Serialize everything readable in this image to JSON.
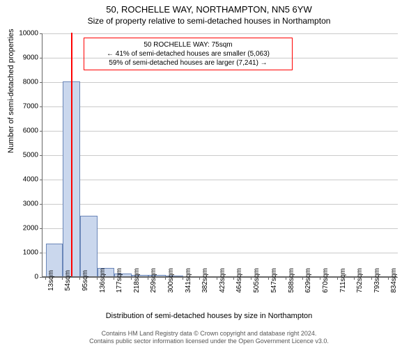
{
  "header": {
    "address": "50, ROCHELLE WAY, NORTHAMPTON, NN5 6YW",
    "subtitle": "Size of property relative to semi-detached houses in Northampton"
  },
  "chart": {
    "type": "histogram",
    "ylabel": "Number of semi-detached properties",
    "xlabel": "Distribution of semi-detached houses by size in Northampton",
    "ylim": [
      0,
      10000
    ],
    "ytick_step": 1000,
    "yticks": [
      0,
      1000,
      2000,
      3000,
      4000,
      5000,
      6000,
      7000,
      8000,
      9000,
      10000
    ],
    "x_tick_labels": [
      "13sqm",
      "54sqm",
      "95sqm",
      "136sqm",
      "177sqm",
      "218sqm",
      "259sqm",
      "300sqm",
      "341sqm",
      "382sqm",
      "423sqm",
      "464sqm",
      "505sqm",
      "547sqm",
      "588sqm",
      "629sqm",
      "670sqm",
      "711sqm",
      "752sqm",
      "793sqm",
      "834sqm"
    ],
    "x_tick_positions": [
      13,
      54,
      95,
      136,
      177,
      218,
      259,
      300,
      341,
      382,
      423,
      464,
      505,
      547,
      588,
      629,
      670,
      711,
      752,
      793,
      834
    ],
    "xlim": [
      5,
      855
    ],
    "bar_fill": "#cad7ed",
    "bar_stroke": "#6a86b8",
    "bars": [
      {
        "x0": 13,
        "x1": 54,
        "count": 1350
      },
      {
        "x0": 54,
        "x1": 95,
        "count": 8000
      },
      {
        "x0": 95,
        "x1": 136,
        "count": 2500
      },
      {
        "x0": 136,
        "x1": 177,
        "count": 350
      },
      {
        "x0": 177,
        "x1": 218,
        "count": 120
      },
      {
        "x0": 218,
        "x1": 259,
        "count": 60
      },
      {
        "x0": 259,
        "x1": 300,
        "count": 60
      },
      {
        "x0": 300,
        "x1": 341,
        "count": 30
      }
    ],
    "marker": {
      "size_sqm": 75,
      "color": "#ff0000"
    },
    "background_color": "#ffffff",
    "grid_color": "#666666"
  },
  "annotation": {
    "line1": "50 ROCHELLE WAY: 75sqm",
    "line2": "← 41% of semi-detached houses are smaller (5,063)",
    "line3": "59% of semi-detached houses are larger (7,241) →",
    "border_color": "#ff0000"
  },
  "footer": {
    "line1": "Contains HM Land Registry data © Crown copyright and database right 2024.",
    "line2": "Contains public sector information licensed under the Open Government Licence v3.0."
  }
}
